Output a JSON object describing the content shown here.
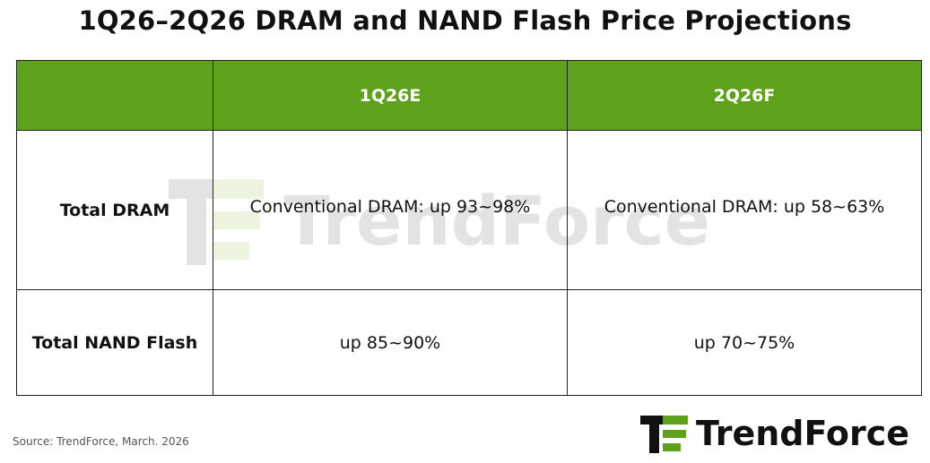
{
  "title": "1Q26–2Q26 DRAM and NAND Flash Price Projections",
  "table": {
    "header": [
      "1Q26E",
      "2Q26F"
    ],
    "rows": [
      {
        "label": "Total DRAM",
        "cells": [
          "Conventional DRAM: up 93~98%",
          "Conventional DRAM: up 58~63%"
        ]
      },
      {
        "label": "Total NAND Flash",
        "cells": [
          "up 85~90%",
          "up 70~75%"
        ]
      }
    ]
  },
  "source": "Source: TrendForce, March. 2026",
  "logo": "TrendForce"
}
